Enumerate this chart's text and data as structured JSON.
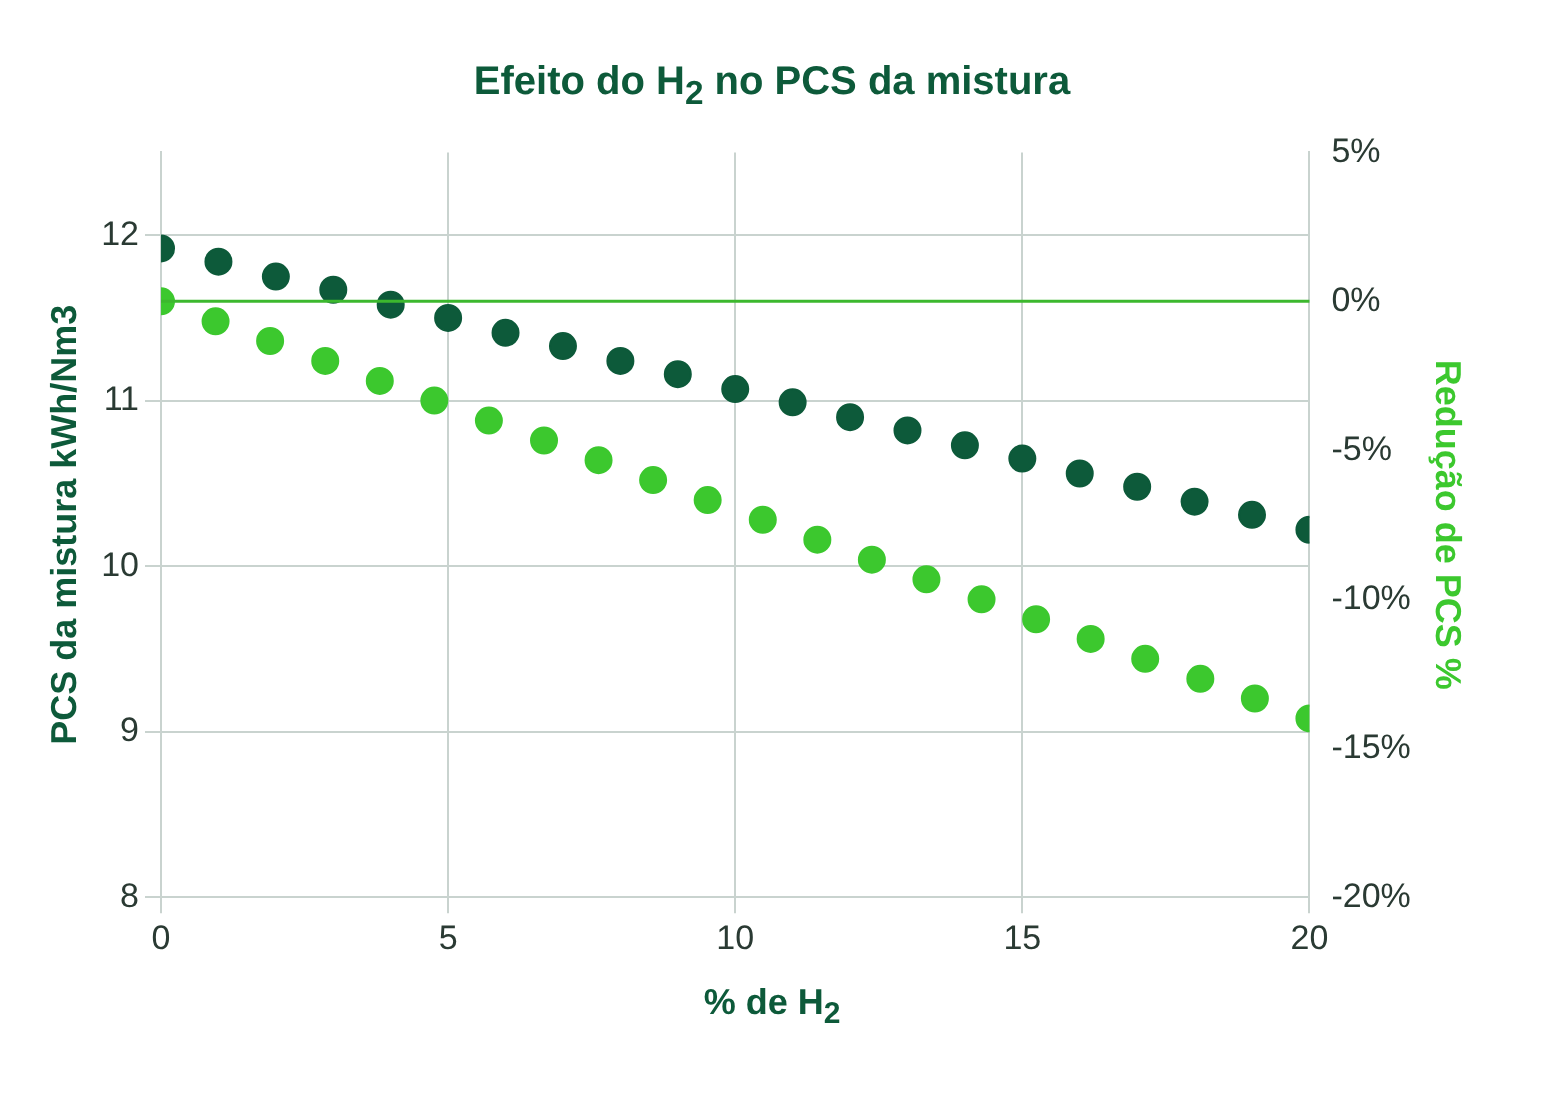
{
  "chart_data": {
    "type": "scatter",
    "title": "Efeito do H$_{2}$ no PCS da mistura",
    "xlabel": "% de H$_{2}$",
    "ylabel": "PCS da mistura kWh/Nm3",
    "y2label": "Redução de PCS %",
    "xlim": [
      0,
      20
    ],
    "xticks": [
      0,
      5,
      10,
      15,
      20
    ],
    "ylim": [
      8,
      12.5
    ],
    "yticks": [
      8,
      9,
      10,
      11,
      12
    ],
    "y2lim": [
      -20,
      5
    ],
    "y2ticks": [
      {
        "value": 5,
        "label": "5%"
      },
      {
        "value": 0,
        "label": "0%"
      },
      {
        "value": -5,
        "label": "-5%"
      },
      {
        "value": -10,
        "label": "-10%"
      },
      {
        "value": -15,
        "label": "-15%"
      },
      {
        "value": -20,
        "label": "-20%"
      }
    ],
    "grid": true,
    "legend": false,
    "marker": "circle",
    "x": [
      0,
      1,
      2,
      3,
      4,
      5,
      6,
      7,
      8,
      9,
      10,
      11,
      12,
      13,
      14,
      15,
      16,
      17,
      18,
      19,
      20
    ],
    "series": [
      {
        "color": "#0d5a3a",
        "values": [
          11.92,
          11.84,
          11.75,
          11.67,
          11.58,
          11.5,
          11.41,
          11.33,
          11.24,
          11.16,
          11.07,
          10.99,
          10.9,
          10.82,
          10.73,
          10.65,
          10.56,
          10.48,
          10.39,
          10.31,
          10.22
        ]
      },
      {
        "color": "#3cc82e",
        "axis": "y2",
        "x": [
          0,
          0.95,
          1.9,
          2.86,
          3.81,
          4.76,
          5.71,
          6.67,
          7.62,
          8.57,
          9.52,
          10.48,
          11.43,
          12.38,
          13.33,
          14.29,
          15.24,
          16.19,
          17.14,
          18.1,
          19.05,
          20
        ],
        "values": [
          0,
          -0.67,
          -1.33,
          -2,
          -2.67,
          -3.33,
          -4,
          -4.67,
          -5.33,
          -6,
          -6.67,
          -7.33,
          -8,
          -8.67,
          -9.33,
          -10,
          -10.67,
          -11.33,
          -12,
          -12.67,
          -13.33,
          -14
        ]
      }
    ],
    "ref_lines": [
      {
        "axis": "y2",
        "value": 0,
        "color": "#3cb82e"
      }
    ]
  }
}
